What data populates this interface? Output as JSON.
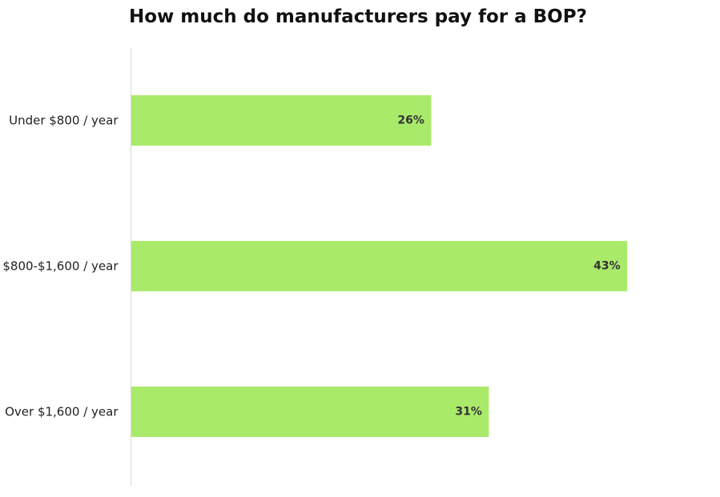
{
  "chart_data": {
    "type": "bar",
    "orientation": "horizontal",
    "title": "How much do manufacturers pay for a BOP?",
    "categories": [
      "Under $800 / year",
      "$800-$1,600 / year",
      "Over $1,600 / year"
    ],
    "values": [
      26,
      43,
      31
    ],
    "value_labels": [
      "26%",
      "43%",
      "31%"
    ],
    "unit": "%",
    "xlim": [
      0,
      50
    ],
    "xlabel": "",
    "ylabel": "",
    "grid": false,
    "legend": "none",
    "bar_color": "#aaea6b",
    "axis_color": "#d9d9d9"
  }
}
